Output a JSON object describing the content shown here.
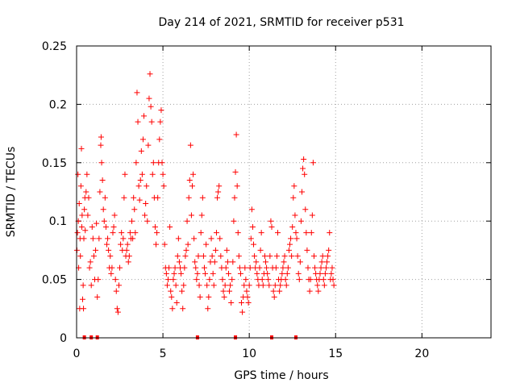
{
  "chart_data": {
    "type": "scatter",
    "title": "Day 214 of 2021, SRMTID for receiver p531",
    "xlabel": "GPS time / hours",
    "ylabel": "SRMTID / TECUs",
    "xlim": [
      0,
      24
    ],
    "ylim": [
      0,
      0.25
    ],
    "xticks": [
      0,
      5,
      10,
      15,
      20
    ],
    "xtick_labels": [
      "0",
      "5",
      "10",
      "15",
      "20"
    ],
    "yticks": [
      0,
      0.05,
      0.1,
      0.15,
      0.2,
      0.25
    ],
    "ytick_labels": [
      "0",
      "0.05",
      "0.1",
      "0.15",
      "0.2",
      "0.25"
    ],
    "grid": true,
    "marker": "+",
    "color": "#ff0000",
    "x_range_of_data": [
      0,
      14.9
    ],
    "zero_markers_x": [
      0.45,
      0.85,
      1.2,
      7.0,
      9.2,
      11.3,
      12.7
    ],
    "series": [
      {
        "name": "p531",
        "points": [
          [
            0.02,
            0.075
          ],
          [
            0.05,
            0.09
          ],
          [
            0.08,
            0.14
          ],
          [
            0.1,
            0.1
          ],
          [
            0.12,
            0.06
          ],
          [
            0.15,
            0.115
          ],
          [
            0.18,
            0.025
          ],
          [
            0.2,
            0.085
          ],
          [
            0.22,
            0.07
          ],
          [
            0.25,
            0.13
          ],
          [
            0.28,
            0.162
          ],
          [
            0.3,
            0.095
          ],
          [
            0.32,
            0.105
          ],
          [
            0.35,
            0.033
          ],
          [
            0.38,
            0.045
          ],
          [
            0.4,
            0.025
          ],
          [
            0.42,
            0.085
          ],
          [
            0.45,
            0.11
          ],
          [
            0.48,
            0.12
          ],
          [
            0.5,
            0.092
          ],
          [
            0.55,
            0.125
          ],
          [
            0.6,
            0.14
          ],
          [
            0.65,
            0.105
          ],
          [
            0.7,
            0.12
          ],
          [
            0.75,
            0.06
          ],
          [
            0.8,
            0.065
          ],
          [
            0.85,
            0.045
          ],
          [
            0.9,
            0.095
          ],
          [
            0.95,
            0.085
          ],
          [
            1.0,
            0.07
          ],
          [
            1.05,
            0.05
          ],
          [
            1.1,
            0.075
          ],
          [
            1.15,
            0.098
          ],
          [
            1.2,
            0.035
          ],
          [
            1.25,
            0.05
          ],
          [
            1.3,
            0.085
          ],
          [
            1.35,
            0.125
          ],
          [
            1.4,
            0.165
          ],
          [
            1.42,
            0.172
          ],
          [
            1.45,
            0.15
          ],
          [
            1.5,
            0.135
          ],
          [
            1.55,
            0.11
          ],
          [
            1.6,
            0.1
          ],
          [
            1.65,
            0.12
          ],
          [
            1.7,
            0.095
          ],
          [
            1.75,
            0.08
          ],
          [
            1.8,
            0.085
          ],
          [
            1.85,
            0.075
          ],
          [
            1.9,
            0.06
          ],
          [
            1.95,
            0.07
          ],
          [
            2.0,
            0.055
          ],
          [
            2.05,
            0.06
          ],
          [
            2.1,
            0.09
          ],
          [
            2.15,
            0.095
          ],
          [
            2.2,
            0.105
          ],
          [
            2.25,
            0.05
          ],
          [
            2.3,
            0.04
          ],
          [
            2.35,
            0.025
          ],
          [
            2.4,
            0.022
          ],
          [
            2.45,
            0.045
          ],
          [
            2.5,
            0.06
          ],
          [
            2.55,
            0.08
          ],
          [
            2.6,
            0.09
          ],
          [
            2.65,
            0.075
          ],
          [
            2.7,
            0.085
          ],
          [
            2.75,
            0.12
          ],
          [
            2.8,
            0.14
          ],
          [
            2.85,
            0.07
          ],
          [
            2.9,
            0.075
          ],
          [
            2.95,
            0.08
          ],
          [
            3.0,
            0.065
          ],
          [
            3.05,
            0.07
          ],
          [
            3.1,
            0.09
          ],
          [
            3.15,
            0.085
          ],
          [
            3.2,
            0.1
          ],
          [
            3.25,
            0.085
          ],
          [
            3.3,
            0.12
          ],
          [
            3.35,
            0.11
          ],
          [
            3.4,
            0.09
          ],
          [
            3.45,
            0.15
          ],
          [
            3.5,
            0.21
          ],
          [
            3.55,
            0.185
          ],
          [
            3.6,
            0.13
          ],
          [
            3.65,
            0.118
          ],
          [
            3.7,
            0.135
          ],
          [
            3.75,
            0.16
          ],
          [
            3.8,
            0.14
          ],
          [
            3.85,
            0.17
          ],
          [
            3.9,
            0.19
          ],
          [
            3.95,
            0.105
          ],
          [
            4.0,
            0.115
          ],
          [
            4.05,
            0.13
          ],
          [
            4.1,
            0.1
          ],
          [
            4.15,
            0.165
          ],
          [
            4.2,
            0.205
          ],
          [
            4.25,
            0.226
          ],
          [
            4.3,
            0.198
          ],
          [
            4.35,
            0.185
          ],
          [
            4.4,
            0.14
          ],
          [
            4.45,
            0.15
          ],
          [
            4.5,
            0.12
          ],
          [
            4.55,
            0.095
          ],
          [
            4.6,
            0.08
          ],
          [
            4.65,
            0.09
          ],
          [
            4.7,
            0.12
          ],
          [
            4.75,
            0.15
          ],
          [
            4.8,
            0.17
          ],
          [
            4.85,
            0.185
          ],
          [
            4.9,
            0.195
          ],
          [
            4.95,
            0.15
          ],
          [
            5.0,
            0.14
          ],
          [
            5.05,
            0.13
          ],
          [
            5.1,
            0.08
          ],
          [
            5.15,
            0.06
          ],
          [
            5.2,
            0.055
          ],
          [
            5.25,
            0.045
          ],
          [
            5.3,
            0.05
          ],
          [
            5.35,
            0.06
          ],
          [
            5.4,
            0.095
          ],
          [
            5.45,
            0.04
          ],
          [
            5.5,
            0.035
          ],
          [
            5.55,
            0.025
          ],
          [
            5.6,
            0.05
          ],
          [
            5.65,
            0.055
          ],
          [
            5.7,
            0.06
          ],
          [
            5.75,
            0.045
          ],
          [
            5.8,
            0.03
          ],
          [
            5.85,
            0.07
          ],
          [
            5.9,
            0.085
          ],
          [
            5.95,
            0.065
          ],
          [
            6.0,
            0.06
          ],
          [
            6.05,
            0.055
          ],
          [
            6.1,
            0.04
          ],
          [
            6.15,
            0.025
          ],
          [
            6.2,
            0.045
          ],
          [
            6.25,
            0.06
          ],
          [
            6.3,
            0.07
          ],
          [
            6.35,
            0.075
          ],
          [
            6.4,
            0.1
          ],
          [
            6.45,
            0.08
          ],
          [
            6.5,
            0.12
          ],
          [
            6.55,
            0.135
          ],
          [
            6.6,
            0.165
          ],
          [
            6.65,
            0.105
          ],
          [
            6.7,
            0.13
          ],
          [
            6.75,
            0.14
          ],
          [
            6.8,
            0.085
          ],
          [
            6.85,
            0.065
          ],
          [
            6.9,
            0.06
          ],
          [
            6.95,
            0.05
          ],
          [
            7.0,
            0.055
          ],
          [
            7.05,
            0.07
          ],
          [
            7.1,
            0.045
          ],
          [
            7.15,
            0.035
          ],
          [
            7.2,
            0.09
          ],
          [
            7.25,
            0.105
          ],
          [
            7.3,
            0.12
          ],
          [
            7.35,
            0.07
          ],
          [
            7.4,
            0.06
          ],
          [
            7.45,
            0.055
          ],
          [
            7.5,
            0.08
          ],
          [
            7.55,
            0.045
          ],
          [
            7.6,
            0.025
          ],
          [
            7.65,
            0.035
          ],
          [
            7.7,
            0.05
          ],
          [
            7.75,
            0.065
          ],
          [
            7.8,
            0.085
          ],
          [
            7.85,
            0.07
          ],
          [
            7.9,
            0.055
          ],
          [
            7.95,
            0.045
          ],
          [
            8.0,
            0.065
          ],
          [
            8.05,
            0.075
          ],
          [
            8.1,
            0.09
          ],
          [
            8.15,
            0.12
          ],
          [
            8.2,
            0.125
          ],
          [
            8.25,
            0.13
          ],
          [
            8.3,
            0.085
          ],
          [
            8.35,
            0.07
          ],
          [
            8.4,
            0.06
          ],
          [
            8.45,
            0.05
          ],
          [
            8.5,
            0.04
          ],
          [
            8.55,
            0.035
          ],
          [
            8.6,
            0.045
          ],
          [
            8.65,
            0.06
          ],
          [
            8.7,
            0.075
          ],
          [
            8.75,
            0.065
          ],
          [
            8.8,
            0.055
          ],
          [
            8.85,
            0.04
          ],
          [
            8.9,
            0.045
          ],
          [
            8.95,
            0.03
          ],
          [
            9.0,
            0.05
          ],
          [
            9.05,
            0.065
          ],
          [
            9.1,
            0.1
          ],
          [
            9.15,
            0.12
          ],
          [
            9.2,
            0.142
          ],
          [
            9.25,
            0.174
          ],
          [
            9.3,
            0.13
          ],
          [
            9.35,
            0.09
          ],
          [
            9.4,
            0.07
          ],
          [
            9.45,
            0.06
          ],
          [
            9.5,
            0.055
          ],
          [
            9.55,
            0.03
          ],
          [
            9.6,
            0.022
          ],
          [
            9.65,
            0.035
          ],
          [
            9.7,
            0.045
          ],
          [
            9.75,
            0.06
          ],
          [
            9.8,
            0.05
          ],
          [
            9.85,
            0.04
          ],
          [
            9.9,
            0.035
          ],
          [
            9.95,
            0.03
          ],
          [
            10.0,
            0.045
          ],
          [
            10.05,
            0.06
          ],
          [
            10.1,
            0.085
          ],
          [
            10.15,
            0.11
          ],
          [
            10.2,
            0.095
          ],
          [
            10.25,
            0.08
          ],
          [
            10.3,
            0.07
          ],
          [
            10.35,
            0.06
          ],
          [
            10.4,
            0.065
          ],
          [
            10.45,
            0.055
          ],
          [
            10.5,
            0.05
          ],
          [
            10.55,
            0.045
          ],
          [
            10.6,
            0.06
          ],
          [
            10.65,
            0.075
          ],
          [
            10.7,
            0.09
          ],
          [
            10.75,
            0.05
          ],
          [
            10.8,
            0.045
          ],
          [
            10.85,
            0.055
          ],
          [
            10.9,
            0.07
          ],
          [
            10.95,
            0.065
          ],
          [
            11.0,
            0.06
          ],
          [
            11.05,
            0.055
          ],
          [
            11.1,
            0.05
          ],
          [
            11.15,
            0.045
          ],
          [
            11.2,
            0.07
          ],
          [
            11.25,
            0.1
          ],
          [
            11.3,
            0.095
          ],
          [
            11.35,
            0.06
          ],
          [
            11.4,
            0.04
          ],
          [
            11.45,
            0.035
          ],
          [
            11.5,
            0.045
          ],
          [
            11.55,
            0.06
          ],
          [
            11.6,
            0.07
          ],
          [
            11.65,
            0.09
          ],
          [
            11.7,
            0.05
          ],
          [
            11.75,
            0.04
          ],
          [
            11.8,
            0.045
          ],
          [
            11.85,
            0.05
          ],
          [
            11.9,
            0.055
          ],
          [
            11.95,
            0.06
          ],
          [
            12.0,
            0.065
          ],
          [
            12.05,
            0.07
          ],
          [
            12.1,
            0.05
          ],
          [
            12.15,
            0.045
          ],
          [
            12.2,
            0.055
          ],
          [
            12.25,
            0.06
          ],
          [
            12.3,
            0.075
          ],
          [
            12.35,
            0.08
          ],
          [
            12.4,
            0.085
          ],
          [
            12.45,
            0.07
          ],
          [
            12.5,
            0.095
          ],
          [
            12.55,
            0.12
          ],
          [
            12.6,
            0.13
          ],
          [
            12.65,
            0.105
          ],
          [
            12.7,
            0.09
          ],
          [
            12.75,
            0.085
          ],
          [
            12.8,
            0.07
          ],
          [
            12.85,
            0.055
          ],
          [
            12.9,
            0.05
          ],
          [
            12.95,
            0.065
          ],
          [
            13.0,
            0.1
          ],
          [
            13.05,
            0.125
          ],
          [
            13.1,
            0.145
          ],
          [
            13.15,
            0.153
          ],
          [
            13.2,
            0.14
          ],
          [
            13.25,
            0.11
          ],
          [
            13.3,
            0.09
          ],
          [
            13.35,
            0.075
          ],
          [
            13.4,
            0.06
          ],
          [
            13.45,
            0.05
          ],
          [
            13.5,
            0.04
          ],
          [
            13.55,
            0.05
          ],
          [
            13.6,
            0.09
          ],
          [
            13.65,
            0.105
          ],
          [
            13.7,
            0.15
          ],
          [
            13.75,
            0.07
          ],
          [
            13.8,
            0.06
          ],
          [
            13.85,
            0.055
          ],
          [
            13.9,
            0.05
          ],
          [
            13.95,
            0.045
          ],
          [
            14.0,
            0.04
          ],
          [
            14.05,
            0.05
          ],
          [
            14.1,
            0.055
          ],
          [
            14.15,
            0.06
          ],
          [
            14.2,
            0.065
          ],
          [
            14.25,
            0.07
          ],
          [
            14.3,
            0.05
          ],
          [
            14.35,
            0.045
          ],
          [
            14.4,
            0.055
          ],
          [
            14.45,
            0.06
          ],
          [
            14.5,
            0.065
          ],
          [
            14.55,
            0.07
          ],
          [
            14.6,
            0.075
          ],
          [
            14.65,
            0.09
          ],
          [
            14.7,
            0.05
          ],
          [
            14.75,
            0.055
          ],
          [
            14.8,
            0.06
          ],
          [
            14.85,
            0.05
          ],
          [
            14.9,
            0.045
          ]
        ]
      }
    ]
  }
}
